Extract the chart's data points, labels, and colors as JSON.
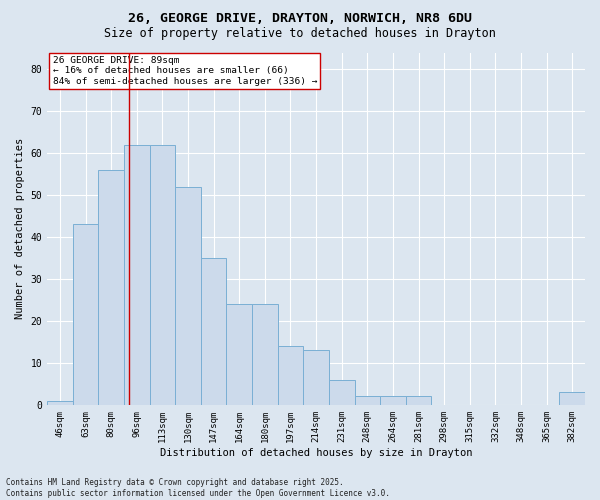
{
  "title1": "26, GEORGE DRIVE, DRAYTON, NORWICH, NR8 6DU",
  "title2": "Size of property relative to detached houses in Drayton",
  "xlabel": "Distribution of detached houses by size in Drayton",
  "ylabel": "Number of detached properties",
  "categories": [
    "46sqm",
    "63sqm",
    "80sqm",
    "96sqm",
    "113sqm",
    "130sqm",
    "147sqm",
    "164sqm",
    "180sqm",
    "197sqm",
    "214sqm",
    "231sqm",
    "248sqm",
    "264sqm",
    "281sqm",
    "298sqm",
    "315sqm",
    "332sqm",
    "348sqm",
    "365sqm",
    "382sqm"
  ],
  "values": [
    1,
    43,
    56,
    62,
    62,
    52,
    35,
    24,
    24,
    14,
    13,
    6,
    2,
    2,
    2,
    0,
    0,
    0,
    0,
    0,
    3
  ],
  "bar_color": "#ccdaeb",
  "bar_edge_color": "#7aafd4",
  "red_line_x": 2.7,
  "annotation_text": "26 GEORGE DRIVE: 89sqm\n← 16% of detached houses are smaller (66)\n84% of semi-detached houses are larger (336) →",
  "annotation_box_color": "#ffffff",
  "annotation_border_color": "#cc0000",
  "ylim": [
    0,
    84
  ],
  "yticks": [
    0,
    10,
    20,
    30,
    40,
    50,
    60,
    70,
    80
  ],
  "background_color": "#dce6f0",
  "footer": "Contains HM Land Registry data © Crown copyright and database right 2025.\nContains public sector information licensed under the Open Government Licence v3.0.",
  "title_fontsize": 9.5,
  "subtitle_fontsize": 8.5,
  "axis_label_fontsize": 7.5,
  "tick_fontsize": 6.5,
  "annotation_fontsize": 6.8,
  "footer_fontsize": 5.5
}
